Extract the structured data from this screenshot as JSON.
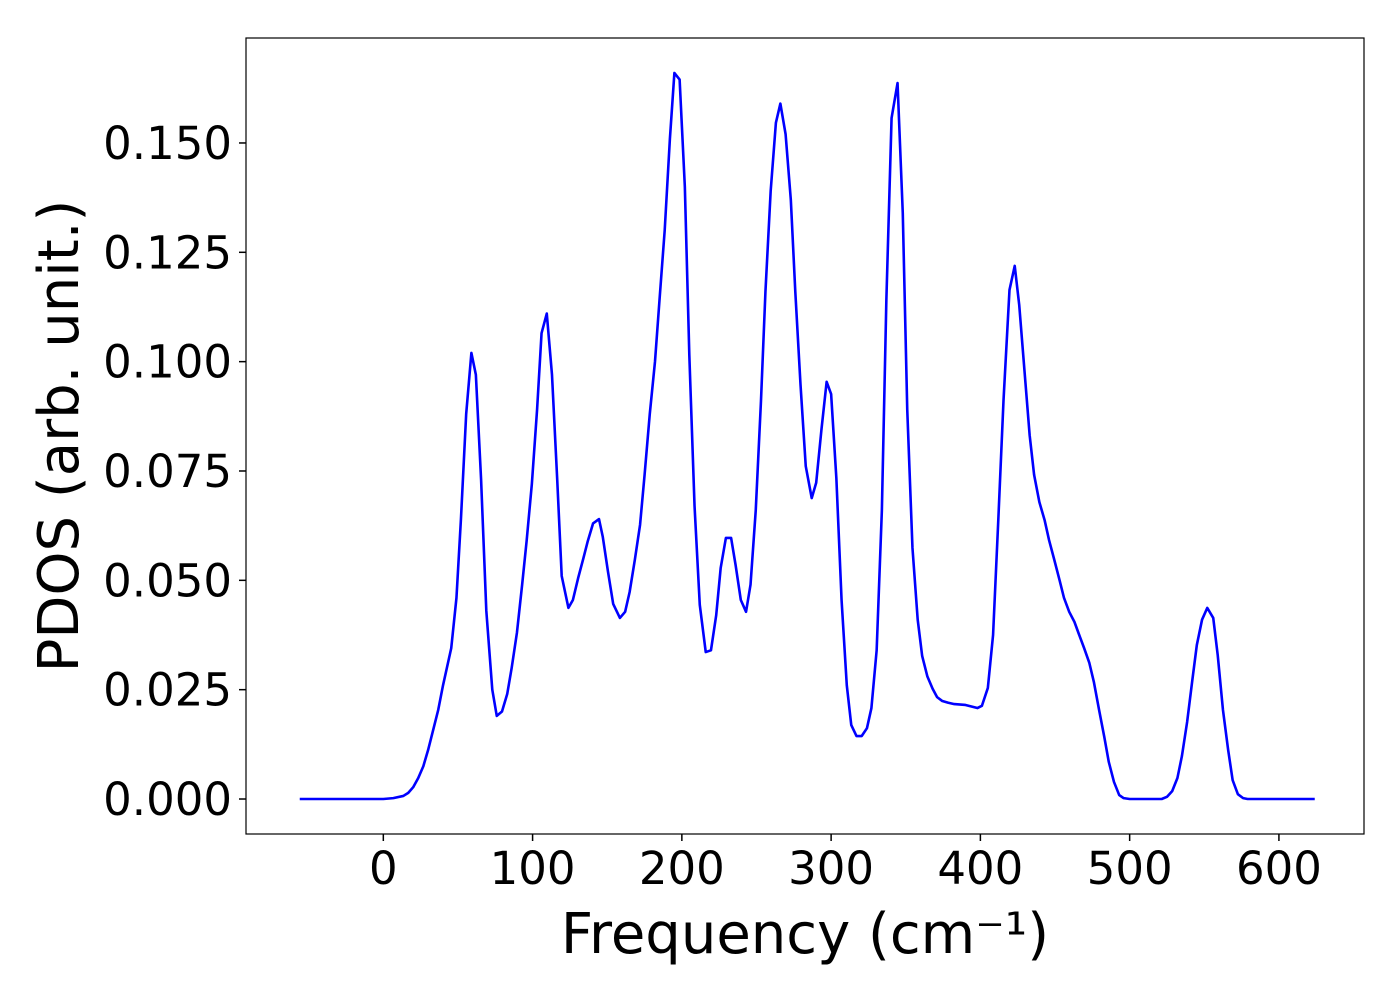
{
  "chart_data": {
    "type": "line",
    "xlabel": "Frequency (cm⁻¹)",
    "ylabel": "PDOS (arb. unit.)",
    "xlim": [
      -92,
      657
    ],
    "ylim": [
      -0.008,
      0.174
    ],
    "xticks": [
      0,
      100,
      200,
      300,
      400,
      500,
      600
    ],
    "yticks": [
      {
        "value": 0,
        "label": "0.000"
      },
      {
        "value": 0.025,
        "label": "0.025"
      },
      {
        "value": 0.05,
        "label": "0.050"
      },
      {
        "value": 0.075,
        "label": "0.075"
      },
      {
        "value": 0.1,
        "label": "0.100"
      },
      {
        "value": 0.125,
        "label": "0.125"
      },
      {
        "value": 0.15,
        "label": "0.150"
      }
    ],
    "x": [
      -56,
      0,
      6.7,
      13.4,
      16.7,
      20,
      23.4,
      26.8,
      30,
      33.4,
      36.8,
      40,
      45.5,
      49,
      52,
      55.5,
      59,
      62,
      65.5,
      69,
      73,
      76,
      79.5,
      83,
      86,
      89.5,
      93,
      96,
      99.5,
      103,
      106,
      109.5,
      113,
      116.5,
      119.5,
      124,
      127,
      130.5,
      134,
      137,
      140.5,
      144.5,
      147,
      150.5,
      154,
      158.5,
      162,
      165,
      168.5,
      172,
      175,
      178.5,
      182,
      185,
      188.5,
      192,
      195,
      198.5,
      202,
      205,
      208.5,
      212,
      216,
      219.5,
      223,
      226,
      229.5,
      233,
      236,
      239.5,
      243,
      246,
      249.5,
      253,
      256,
      259.5,
      263,
      266,
      269.5,
      273,
      276,
      279.5,
      283,
      287,
      290,
      293.5,
      297,
      300,
      303.5,
      307,
      310.5,
      313.5,
      317,
      320.5,
      324,
      327,
      330.5,
      334,
      337,
      340.5,
      344.5,
      348,
      351,
      354.5,
      358,
      361,
      364.5,
      368,
      371,
      374.5,
      378.5,
      382.5,
      390,
      398,
      401,
      405,
      408.5,
      412,
      415.5,
      419.5,
      423,
      426,
      429.5,
      433,
      436,
      439.5,
      443,
      446,
      449.5,
      453,
      456,
      459.5,
      463,
      466,
      469.5,
      473,
      476,
      479.5,
      483,
      486,
      489.5,
      493,
      496,
      500,
      521.5,
      525,
      528.5,
      532,
      535,
      538.5,
      542,
      545,
      548.5,
      552,
      556,
      559,
      562.5,
      566,
      569,
      572.5,
      576,
      579,
      624
    ],
    "series": [
      {
        "name": "PDOS",
        "color": "#0000ff",
        "values": [
          0,
          0,
          0.0002,
          0.0007,
          0.0014,
          0.0027,
          0.0048,
          0.0075,
          0.0112,
          0.0158,
          0.0204,
          0.026,
          0.0345,
          0.046,
          0.064,
          0.088,
          0.102,
          0.097,
          0.073,
          0.043,
          0.025,
          0.019,
          0.02,
          0.024,
          0.03,
          0.038,
          0.049,
          0.059,
          0.072,
          0.089,
          0.1065,
          0.111,
          0.097,
          0.073,
          0.051,
          0.0437,
          0.0455,
          0.0505,
          0.055,
          0.059,
          0.063,
          0.064,
          0.06,
          0.052,
          0.0446,
          0.0414,
          0.0428,
          0.0473,
          0.0547,
          0.0627,
          0.074,
          0.088,
          0.1,
          0.114,
          0.13,
          0.151,
          0.166,
          0.1645,
          0.14,
          0.1015,
          0.067,
          0.0444,
          0.0336,
          0.034,
          0.042,
          0.0528,
          0.0597,
          0.0597,
          0.0535,
          0.0455,
          0.0428,
          0.049,
          0.066,
          0.091,
          0.116,
          0.139,
          0.1546,
          0.159,
          0.152,
          0.137,
          0.116,
          0.0947,
          0.0761,
          0.0688,
          0.0723,
          0.0844,
          0.0954,
          0.0926,
          0.0734,
          0.0455,
          0.026,
          0.0169,
          0.0144,
          0.0144,
          0.0162,
          0.0208,
          0.034,
          0.066,
          0.114,
          0.1557,
          0.1637,
          0.134,
          0.089,
          0.0574,
          0.041,
          0.0327,
          0.028,
          0.0252,
          0.0233,
          0.0224,
          0.022,
          0.0217,
          0.0215,
          0.0208,
          0.0213,
          0.0254,
          0.0375,
          0.0638,
          0.0912,
          0.1164,
          0.1219,
          0.113,
          0.0981,
          0.0832,
          0.0741,
          0.0679,
          0.0638,
          0.0592,
          0.0547,
          0.0501,
          0.046,
          0.0428,
          0.0405,
          0.0377,
          0.0345,
          0.0311,
          0.0268,
          0.0204,
          0.0142,
          0.0085,
          0.0039,
          0.0009,
          0.0002,
          0,
          0,
          0.0005,
          0.0018,
          0.0048,
          0.0098,
          0.0176,
          0.0272,
          0.0352,
          0.041,
          0.0437,
          0.0414,
          0.0329,
          0.0204,
          0.0112,
          0.0043,
          0.0011,
          0.0002,
          0,
          0
        ]
      }
    ]
  }
}
